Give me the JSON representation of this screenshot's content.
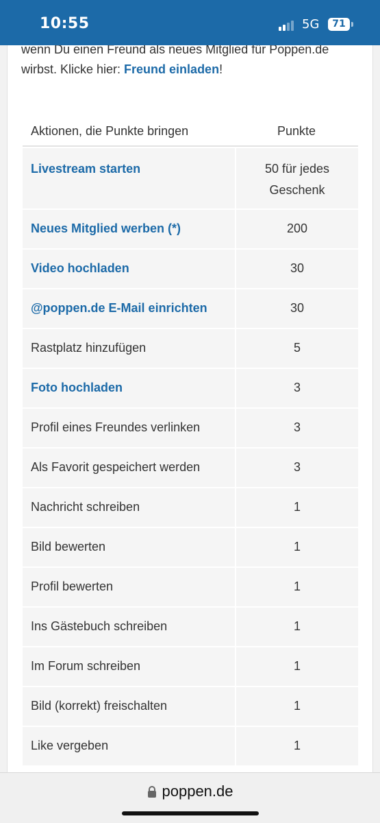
{
  "status_bar": {
    "time": "10:55",
    "network": "5G",
    "battery": "71"
  },
  "intro": {
    "text": "wenn Du einen Freund als neues Mitglied für Poppen.de wirbst. Klicke hier: ",
    "link": "Freund einladen",
    "suffix": "!"
  },
  "table": {
    "header_action": "Aktionen, die Punkte bringen",
    "header_points": "Punkte",
    "rows": [
      {
        "action": "Livestream starten",
        "points": "50 für jedes Geschenk",
        "link": true
      },
      {
        "action": "Neues Mitglied werben (*)",
        "points": "200",
        "link": true
      },
      {
        "action": "Video hochladen",
        "points": "30",
        "link": true
      },
      {
        "action": "@poppen.de E-Mail einrichten",
        "points": "30",
        "link": true
      },
      {
        "action": "Rastplatz hinzufügen",
        "points": "5",
        "link": false
      },
      {
        "action": "Foto hochladen",
        "points": "3",
        "link": true
      },
      {
        "action": "Profil eines Freundes verlinken",
        "points": "3",
        "link": false
      },
      {
        "action": "Als Favorit gespeichert werden",
        "points": "3",
        "link": false
      },
      {
        "action": "Nachricht schreiben",
        "points": "1",
        "link": false
      },
      {
        "action": "Bild bewerten",
        "points": "1",
        "link": false
      },
      {
        "action": "Profil bewerten",
        "points": "1",
        "link": false
      },
      {
        "action": "Ins Gästebuch schreiben",
        "points": "1",
        "link": false
      },
      {
        "action": "Im Forum schreiben",
        "points": "1",
        "link": false
      },
      {
        "action": "Bild (korrekt) freischalten",
        "points": "1",
        "link": false
      },
      {
        "action": "Like vergeben",
        "points": "1",
        "link": false
      }
    ]
  },
  "browser": {
    "url": "poppen.de"
  },
  "colors": {
    "accent": "#1c6aa8",
    "row_bg": "#f5f5f5"
  }
}
